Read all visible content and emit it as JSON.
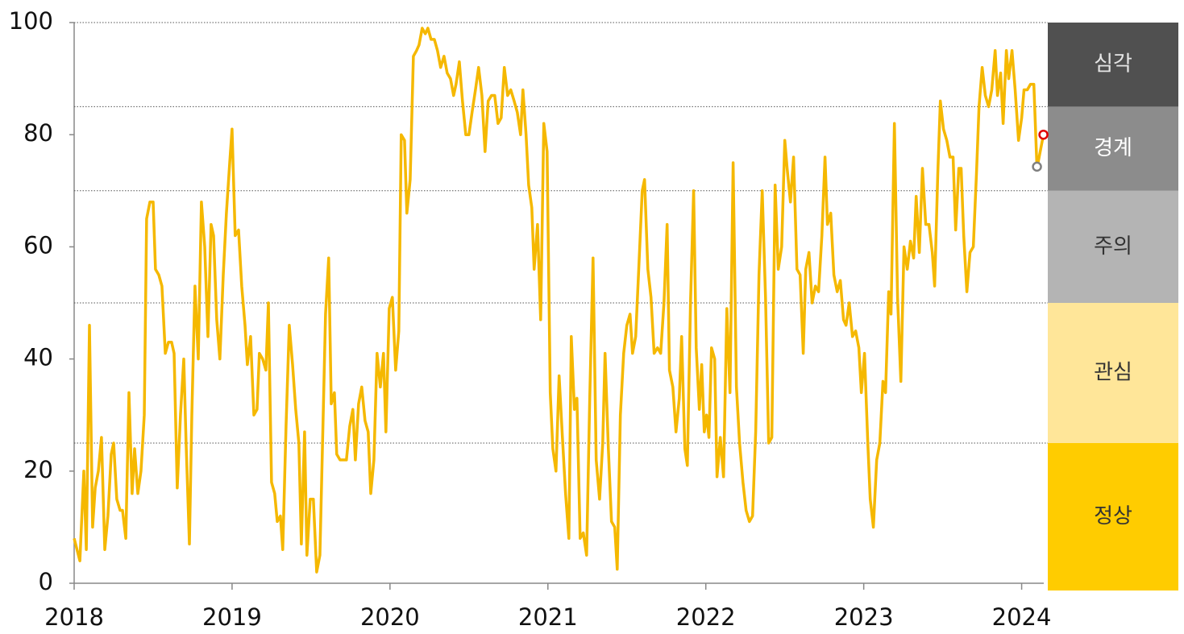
{
  "chart_data": {
    "type": "line",
    "color": "#f5b800",
    "x": [
      2018.0,
      2018.036,
      2018.061,
      2018.077,
      2018.097,
      2018.117,
      2018.133,
      2018.153,
      2018.173,
      2018.194,
      2018.214,
      2018.235,
      2018.25,
      2018.27,
      2018.291,
      2018.306,
      2018.327,
      2018.347,
      2018.367,
      2018.383,
      2018.403,
      2018.423,
      2018.444,
      2018.459,
      2018.48,
      2018.5,
      2018.515,
      2018.536,
      2018.556,
      2018.577,
      2018.597,
      2018.617,
      2018.633,
      2018.653,
      2018.673,
      2018.694,
      2018.709,
      2018.73,
      2018.745,
      2018.765,
      2018.786,
      2018.806,
      2018.827,
      2018.847,
      2018.867,
      2018.883,
      2018.903,
      2018.923,
      2018.944,
      2018.964,
      2018.985,
      2019.0,
      2019.02,
      2019.041,
      2019.061,
      2019.082,
      2019.097,
      2019.117,
      2019.138,
      2019.158,
      2019.173,
      2019.194,
      2019.214,
      2019.23,
      2019.25,
      2019.27,
      2019.286,
      2019.306,
      2019.321,
      2019.342,
      2019.362,
      2019.383,
      2019.403,
      2019.423,
      2019.439,
      2019.459,
      2019.474,
      2019.495,
      2019.515,
      2019.536,
      2019.556,
      2019.577,
      2019.592,
      2019.612,
      2019.628,
      2019.648,
      2019.663,
      2019.684,
      2019.704,
      2019.724,
      2019.745,
      2019.765,
      2019.781,
      2019.801,
      2019.821,
      2019.842,
      2019.862,
      2019.878,
      2019.898,
      2019.918,
      2019.939,
      2019.959,
      2019.974,
      2019.995,
      2020.015,
      2020.036,
      2020.056,
      2020.071,
      2020.092,
      2020.107,
      2020.128,
      2020.148,
      2020.168,
      2020.184,
      2020.204,
      2020.224,
      2020.24,
      2020.26,
      2020.281,
      2020.301,
      2020.321,
      2020.342,
      2020.362,
      2020.383,
      2020.403,
      2020.418,
      2020.439,
      2020.459,
      2020.48,
      2020.5,
      2020.52,
      2020.541,
      2020.561,
      2020.582,
      2020.602,
      2020.622,
      2020.643,
      2020.663,
      2020.684,
      2020.704,
      2020.724,
      2020.745,
      2020.765,
      2020.786,
      2020.806,
      2020.827,
      2020.842,
      2020.862,
      2020.878,
      2020.898,
      2020.913,
      2020.934,
      2020.954,
      2020.974,
      2020.995,
      2021.015,
      2021.031,
      2021.051,
      2021.071,
      2021.092,
      2021.112,
      2021.133,
      2021.148,
      2021.168,
      2021.184,
      2021.204,
      2021.224,
      2021.245,
      2021.265,
      2021.286,
      2021.306,
      2021.327,
      2021.347,
      2021.362,
      2021.383,
      2021.403,
      2021.423,
      2021.439,
      2021.459,
      2021.48,
      2021.5,
      2021.52,
      2021.536,
      2021.556,
      2021.577,
      2021.597,
      2021.612,
      2021.633,
      2021.653,
      2021.673,
      2021.694,
      2021.714,
      2021.735,
      2021.755,
      2021.77,
      2021.791,
      2021.811,
      2021.832,
      2021.847,
      2021.867,
      2021.883,
      2021.903,
      2021.923,
      2021.939,
      2021.959,
      2021.974,
      2021.99,
      2022.005,
      2022.02,
      2022.036,
      2022.056,
      2022.071,
      2022.092,
      2022.112,
      2022.133,
      2022.153,
      2022.173,
      2022.194,
      2022.214,
      2022.235,
      2022.255,
      2022.276,
      2022.296,
      2022.316,
      2022.337,
      2022.357,
      2022.378,
      2022.398,
      2022.418,
      2022.439,
      2022.459,
      2022.48,
      2022.5,
      2022.515,
      2022.536,
      2022.556,
      2022.577,
      2022.597,
      2022.617,
      2022.633,
      2022.653,
      2022.673,
      2022.694,
      2022.714,
      2022.735,
      2022.755,
      2022.77,
      2022.791,
      2022.811,
      2022.832,
      2022.852,
      2022.872,
      2022.888,
      2022.908,
      2022.929,
      2022.949,
      2022.969,
      2022.985,
      2023.005,
      2023.026,
      2023.041,
      2023.061,
      2023.082,
      2023.102,
      2023.122,
      2023.138,
      2023.158,
      2023.173,
      2023.194,
      2023.214,
      2023.235,
      2023.255,
      2023.276,
      2023.296,
      2023.316,
      2023.332,
      2023.352,
      2023.372,
      2023.393,
      2023.413,
      2023.434,
      2023.449,
      2023.469,
      2023.485,
      2023.505,
      2023.526,
      2023.546,
      2023.566,
      2023.582,
      2023.602,
      2023.617,
      2023.633,
      2023.653,
      2023.673,
      2023.694,
      2023.714,
      2023.73,
      2023.75,
      2023.77,
      2023.791,
      2023.811,
      2023.832,
      2023.847,
      2023.867,
      2023.883,
      2023.903,
      2023.918,
      2023.939,
      2023.959,
      2023.98,
      2024.0,
      2024.015,
      2024.036,
      2024.056,
      2024.077,
      2024.097,
      2024.138
    ],
    "values": [
      8,
      4,
      20,
      6,
      46,
      10,
      17,
      20,
      26,
      6,
      12,
      23,
      25,
      15,
      13,
      13,
      8,
      34,
      16,
      24,
      16,
      20,
      30,
      65,
      68,
      68,
      56,
      55,
      53,
      41,
      43,
      43,
      41,
      17,
      30,
      40,
      25,
      7,
      30,
      53,
      40,
      68,
      60,
      44,
      64,
      62,
      47,
      40,
      55,
      66,
      75,
      81,
      62,
      63,
      53,
      46,
      39,
      44,
      30,
      31,
      41,
      40,
      38,
      50,
      18,
      16,
      11,
      12,
      6,
      28,
      46,
      39,
      31,
      25,
      7,
      27,
      5,
      15,
      15,
      2,
      5,
      30,
      48,
      58,
      32,
      34,
      23,
      22,
      22,
      22,
      28,
      31,
      22,
      32,
      35,
      29,
      27,
      16,
      22,
      41,
      35,
      41,
      27,
      49,
      51,
      38,
      45,
      80,
      79,
      66,
      72,
      94,
      95,
      96,
      99,
      98,
      99,
      97,
      97,
      95,
      92,
      94,
      91,
      90,
      87,
      89,
      93,
      86,
      80,
      80,
      84,
      88,
      92,
      87,
      77,
      86,
      87,
      87,
      82,
      83,
      92,
      87,
      88,
      86,
      84,
      80,
      88,
      80,
      71,
      67,
      56,
      64,
      47,
      82,
      77,
      34,
      24,
      20,
      37,
      26,
      16,
      8,
      44,
      31,
      33,
      8,
      9,
      5,
      33,
      58,
      22,
      15,
      25,
      41,
      24,
      11,
      10,
      2.5,
      30,
      41,
      46,
      48,
      41,
      44,
      57,
      70,
      72,
      56,
      51,
      41,
      42,
      41,
      50,
      64,
      38,
      35,
      27,
      33,
      44,
      24,
      21,
      50,
      70,
      42,
      31,
      39,
      27,
      30,
      26,
      42,
      40,
      19,
      26,
      19,
      49,
      34,
      75,
      35,
      25,
      18,
      13,
      11,
      12,
      27,
      55,
      70,
      51,
      25,
      26,
      71,
      56,
      60,
      79,
      74,
      68,
      76,
      56,
      55,
      41,
      56,
      59,
      50,
      53,
      52,
      62,
      76,
      64,
      66,
      55,
      52,
      54,
      47,
      46,
      50,
      44,
      45,
      42,
      34,
      41,
      25,
      15,
      10,
      22,
      25,
      36,
      34,
      52,
      48,
      82,
      51,
      36,
      60,
      56,
      61,
      58,
      69,
      59,
      74,
      64,
      64,
      59,
      53,
      73,
      86,
      81,
      79,
      76,
      76,
      63,
      74,
      74,
      62,
      52,
      59,
      60,
      73,
      85,
      92,
      87,
      85,
      88,
      95,
      87,
      91,
      82,
      95,
      90,
      95,
      88,
      79,
      83,
      88,
      88,
      89,
      89,
      74,
      80
    ],
    "points": [
      {
        "x": 2024.097,
        "value": 74.3,
        "color": "#808080"
      },
      {
        "x": 2024.138,
        "value": 80,
        "color": "#e00000"
      }
    ],
    "xlim": [
      2018,
      2024.14
    ],
    "xticks": [
      2018,
      2019,
      2020,
      2021,
      2022,
      2023,
      2024
    ],
    "ylim": [
      0,
      100
    ],
    "yticks": [
      0,
      20,
      40,
      60,
      80,
      100
    ],
    "levels": [
      {
        "label": "정상",
        "from": 0,
        "to": 25,
        "color": "#ffcc00",
        "text_color": "#333333"
      },
      {
        "label": "관심",
        "from": 25,
        "to": 50,
        "color": "#ffe699",
        "text_color": "#333333"
      },
      {
        "label": "주의",
        "from": 50,
        "to": 70,
        "color": "#b4b4b4",
        "text_color": "#333333"
      },
      {
        "label": "경계",
        "from": 70,
        "to": 85,
        "color": "#8c8c8c",
        "text_color": "#ffffff"
      },
      {
        "label": "심각",
        "from": 85,
        "to": 100,
        "color": "#505050",
        "text_color": "#e6e6e6"
      }
    ]
  }
}
